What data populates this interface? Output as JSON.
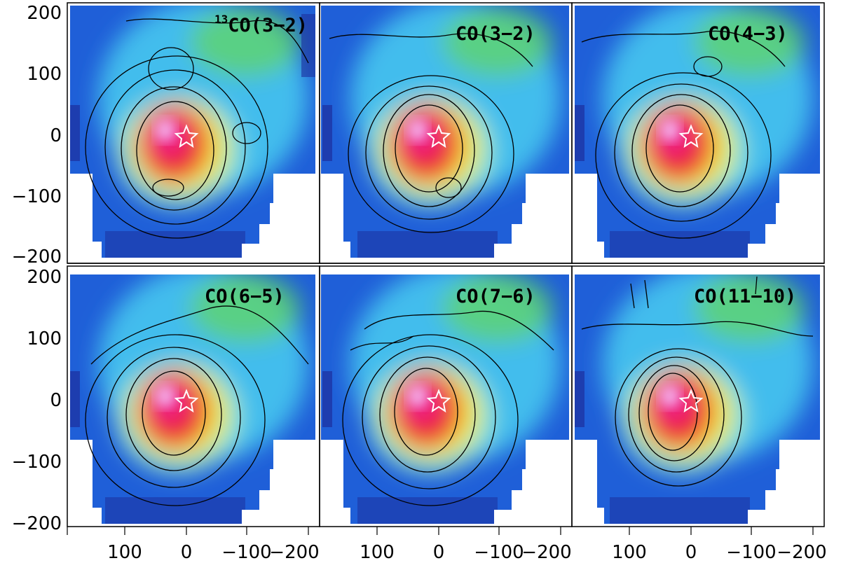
{
  "figure": {
    "panels": [
      {
        "label_sup": "13",
        "label": "CO(3−2)"
      },
      {
        "label_sup": "",
        "label": "CO(3−2)"
      },
      {
        "label_sup": "",
        "label": "CO(4−3)"
      },
      {
        "label_sup": "",
        "label": "CO(6−5)"
      },
      {
        "label_sup": "",
        "label": "CO(7−6)"
      },
      {
        "label_sup": "",
        "label": "CO(11−10)"
      }
    ],
    "y_ticks": [
      "200",
      "100",
      "0",
      "−100",
      "−200"
    ],
    "x_ticks": [
      "100",
      "0",
      "−100",
      "−200"
    ],
    "marker_icon": "star-icon",
    "colormap": [
      "#1c2f9e",
      "#1f6fe6",
      "#47c6f0",
      "#8fe6d6",
      "#63d85a",
      "#f2ea2e",
      "#f39a1e",
      "#ec2838",
      "#f0208c",
      "#f4b2ee"
    ]
  }
}
